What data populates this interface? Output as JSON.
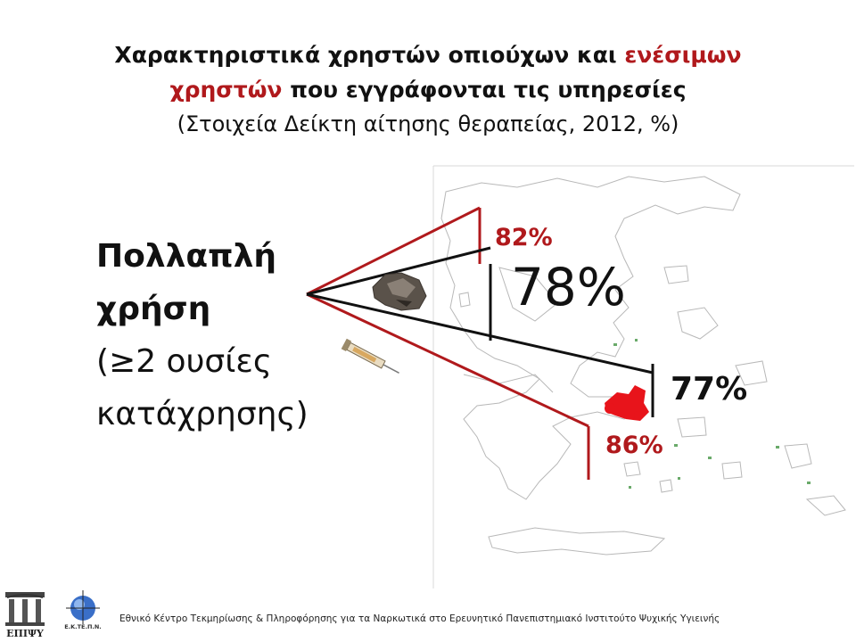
{
  "title": {
    "line1_black": "Χαρακτηριστικά χρηστών οπιούχων και",
    "line1_red": "ενέσιμων",
    "line2_red": "χρηστών",
    "line2_black": "που εγγράφονται τις υπηρεσίες",
    "line3": "(Στοιχεία Δείκτη αίτησης θεραπείας, 2012, %)"
  },
  "label": {
    "line1": "Πολλαπλή",
    "line2": "χρήση",
    "line3": "(≥2 ουσίες",
    "line4": "κατάχρησης)"
  },
  "values": {
    "opioid_users_total": "78%",
    "opioid_users_other": "77%",
    "injecting_users_total": "82%",
    "injecting_users_other": "86%"
  },
  "colors": {
    "red_accent": "#b0191c",
    "black_lines": "#111111",
    "attica_highlight": "#e8141b"
  },
  "icons": {
    "heroin": "heroin-rock-icon",
    "syringe": "syringe-icon"
  },
  "footer": {
    "text": "Εθνικό Κέντρο Τεκμηρίωσης & Πληροφόρησης για τα Ναρκωτικά στο Ερευνητικό Πανεπιστημιακό Ινστιτούτο Ψυχικής Υγιεινής",
    "logo1_text": "ΕΠΙΨΥ",
    "logo2_text": "Ε.Κ.ΤΕ.Π.Ν."
  }
}
